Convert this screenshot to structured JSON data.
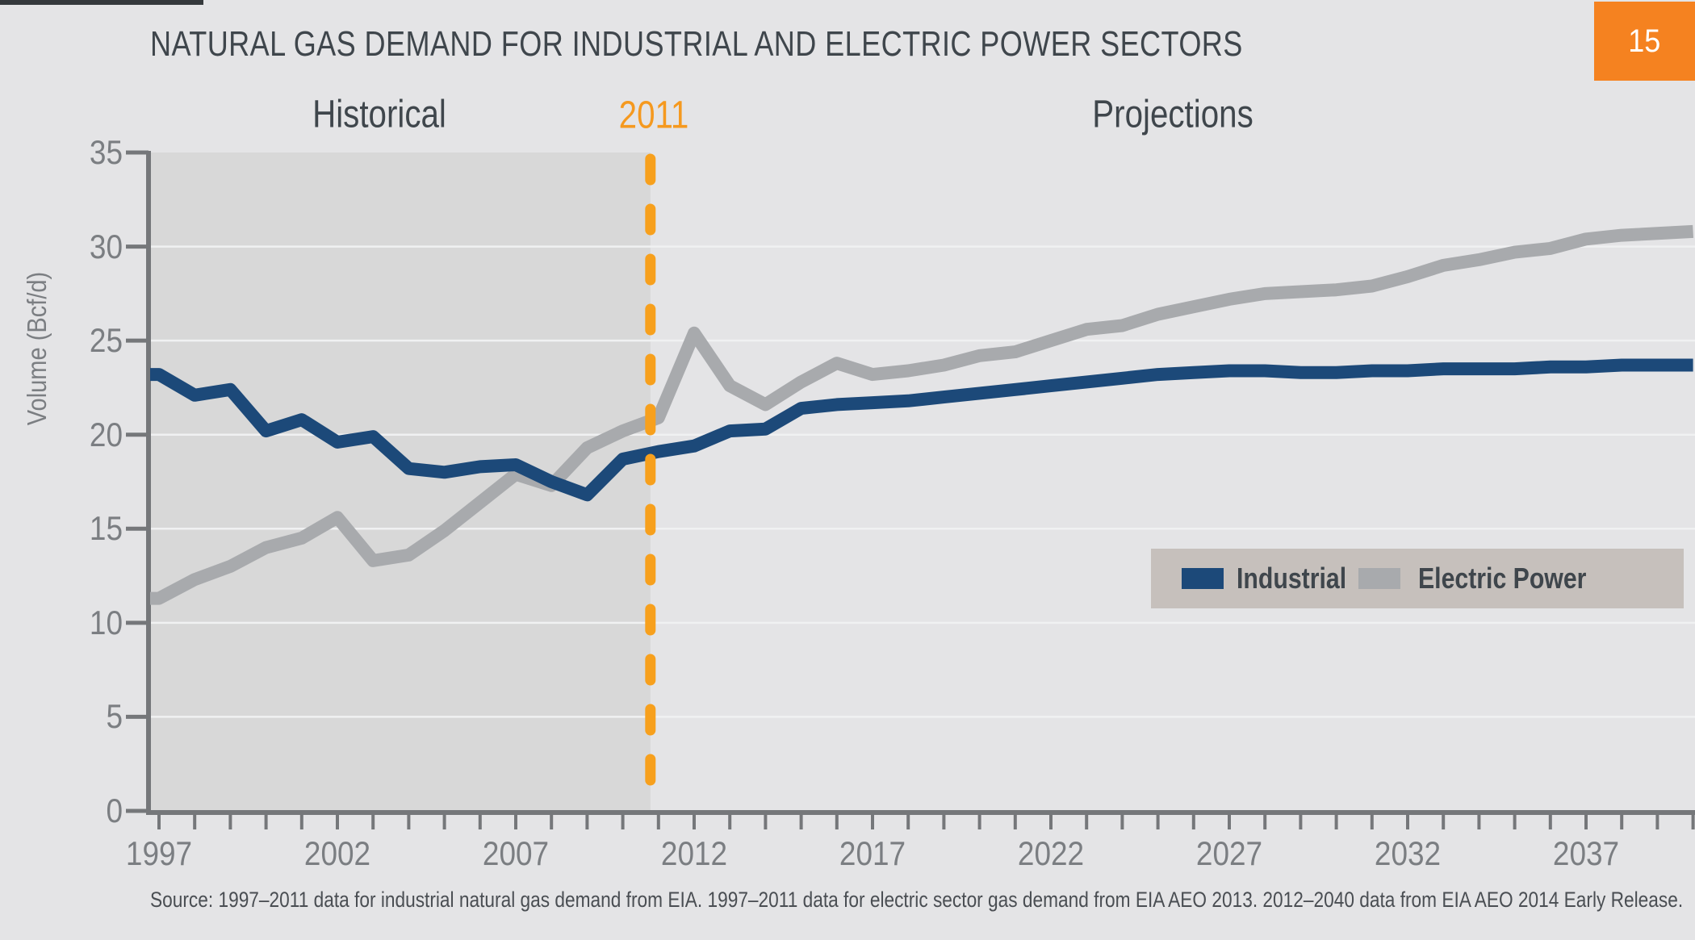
{
  "page": {
    "page_number": "15",
    "source_note": "Source: 1997–2011 data for industrial natural gas demand from EIA. 1997–2011 data for electric sector gas demand from EIA AEO 2013. 2012–2040 data from EIA AEO 2014 Early Release.",
    "colors": {
      "background": "#e4e4e6",
      "badge_orange": "#f58220",
      "top_strip": "#35393c"
    }
  },
  "chart_data": {
    "type": "line",
    "title": "NATURAL GAS DEMAND FOR INDUSTRIAL AND ELECTRIC POWER SECTORS",
    "ylabel": "Volume (Bcf/d)",
    "xlabel": "",
    "ylim": [
      0,
      35
    ],
    "ytick_step": 5,
    "grid": true,
    "legend_position": "middle-right",
    "x": [
      1997,
      1998,
      1999,
      2000,
      2001,
      2002,
      2003,
      2004,
      2005,
      2006,
      2007,
      2008,
      2009,
      2010,
      2011,
      2012,
      2013,
      2014,
      2015,
      2016,
      2017,
      2018,
      2019,
      2020,
      2021,
      2022,
      2023,
      2024,
      2025,
      2026,
      2027,
      2028,
      2029,
      2030,
      2031,
      2032,
      2033,
      2034,
      2035,
      2036,
      2037,
      2038,
      2039,
      2040
    ],
    "xtick_labels": [
      "1997",
      "2002",
      "2007",
      "2012",
      "2017",
      "2022",
      "2027",
      "2032",
      "2037"
    ],
    "zones": {
      "historical_label": "Historical",
      "divider_label": "2011",
      "projections_label": "Projections",
      "divider_year": 2011,
      "historical_fill": "#d8d8d8",
      "divider_color": "#f7a01d",
      "divider_label_color": "#f5991f"
    },
    "series": [
      {
        "name": "Industrial",
        "color": "#1c4979",
        "values": [
          23.2,
          22.1,
          22.4,
          20.2,
          20.8,
          19.6,
          19.9,
          18.2,
          18.0,
          18.3,
          18.4,
          17.5,
          16.8,
          18.7,
          19.1,
          19.4,
          20.2,
          20.3,
          21.4,
          21.6,
          21.7,
          21.8,
          22.0,
          22.2,
          22.4,
          22.6,
          22.8,
          23.0,
          23.2,
          23.3,
          23.4,
          23.4,
          23.3,
          23.3,
          23.4,
          23.4,
          23.5,
          23.5,
          23.5,
          23.6,
          23.6,
          23.7,
          23.7,
          23.7
        ]
      },
      {
        "name": "Electric Power",
        "color": "#a8aaad",
        "values": [
          11.3,
          12.3,
          13.0,
          14.0,
          14.5,
          15.6,
          13.3,
          13.6,
          14.9,
          16.4,
          17.9,
          17.3,
          19.3,
          20.2,
          20.9,
          25.4,
          22.6,
          21.6,
          22.8,
          23.8,
          23.2,
          23.4,
          23.7,
          24.2,
          24.4,
          25.0,
          25.6,
          25.8,
          26.4,
          26.8,
          27.2,
          27.5,
          27.6,
          27.7,
          27.9,
          28.4,
          29.0,
          29.3,
          29.7,
          29.9,
          30.4,
          30.6,
          30.7,
          30.8
        ]
      }
    ],
    "legend_background": "#c6c0bc",
    "axis_color": "#75777a",
    "tick_label_color": "#7b7e82",
    "gridline_color": "#f0f1f2",
    "text_color": "#3f464c"
  }
}
